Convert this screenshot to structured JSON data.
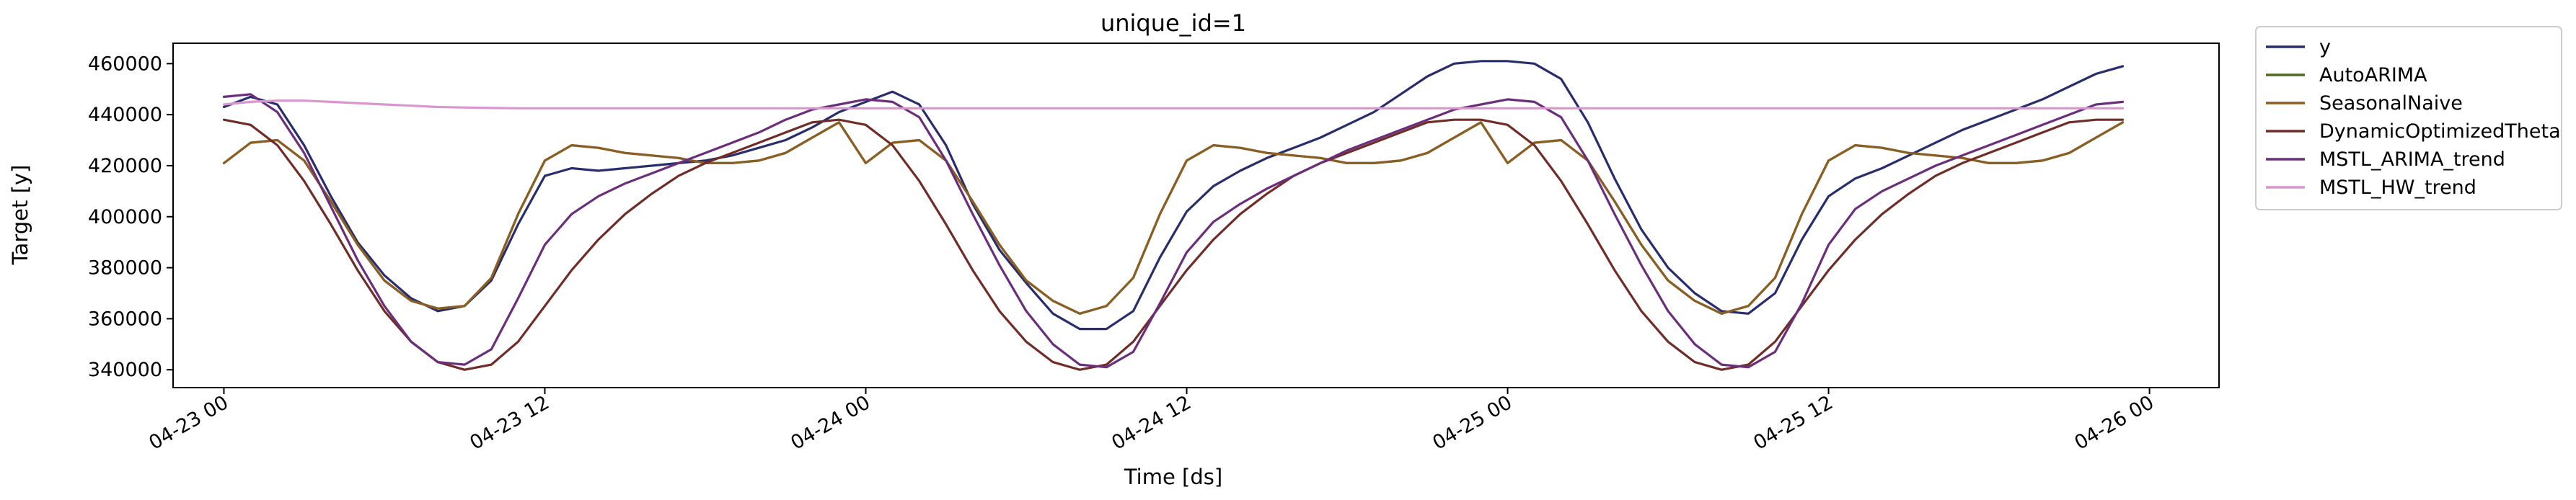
{
  "chart_data": {
    "type": "line",
    "title": "unique_id=1",
    "xlabel": "Time [ds]",
    "ylabel": "Target [y]",
    "x_hours": [
      0,
      1,
      2,
      3,
      4,
      5,
      6,
      7,
      8,
      9,
      10,
      11,
      12,
      13,
      14,
      15,
      16,
      17,
      18,
      19,
      20,
      21,
      22,
      23,
      24,
      25,
      26,
      27,
      28,
      29,
      30,
      31,
      32,
      33,
      34,
      35,
      36,
      37,
      38,
      39,
      40,
      41,
      42,
      43,
      44,
      45,
      46,
      47,
      48,
      49,
      50,
      51,
      52,
      53,
      54,
      55,
      56,
      57,
      58,
      59,
      60,
      61,
      62,
      63,
      64,
      65,
      66,
      67,
      68,
      69,
      70,
      71
    ],
    "x_start": "04-23 00",
    "xlim_hours": [
      -1.9,
      74.6
    ],
    "x_ticks": [
      {
        "hour": 0,
        "label": "04-23 00"
      },
      {
        "hour": 12,
        "label": "04-23 12"
      },
      {
        "hour": 24,
        "label": "04-24 00"
      },
      {
        "hour": 36,
        "label": "04-24 12"
      },
      {
        "hour": 48,
        "label": "04-25 00"
      },
      {
        "hour": 60,
        "label": "04-25 12"
      },
      {
        "hour": 72,
        "label": "04-26 00"
      }
    ],
    "ylim": [
      333000,
      468000
    ],
    "y_ticks": [
      340000,
      360000,
      380000,
      400000,
      420000,
      440000,
      460000
    ],
    "y_tick_labels": [
      "340000",
      "360000",
      "380000",
      "400000",
      "420000",
      "440000",
      "460000"
    ],
    "legend_position": "outside-right",
    "series": [
      {
        "name": "y",
        "color": "#2a2d6b",
        "values": [
          443000,
          447000,
          444000,
          428000,
          408000,
          390000,
          377000,
          368000,
          363000,
          365000,
          375000,
          397000,
          416000,
          419000,
          418000,
          419000,
          420000,
          421000,
          422000,
          424000,
          427000,
          430000,
          435000,
          441000,
          445000,
          449000,
          444000,
          428000,
          405000,
          387000,
          374000,
          362000,
          356000,
          356000,
          363000,
          384000,
          402000,
          412000,
          418000,
          423000,
          427000,
          431000,
          436000,
          441000,
          448000,
          455000,
          460000,
          461000,
          461000,
          460000,
          454000,
          437000,
          415000,
          395000,
          380000,
          370000,
          363000,
          362000,
          370000,
          391000,
          408000,
          415000,
          419000,
          424000,
          429000,
          434000,
          438000,
          442000,
          446000,
          451000,
          456000,
          459000
        ]
      },
      {
        "name": "AutoARIMA",
        "color": "#4f6a21",
        "values": [
          421000,
          429000,
          430000,
          422000,
          406000,
          389000,
          375000,
          367000,
          364000,
          365000,
          376000,
          401000,
          422000,
          428000,
          427000,
          425000,
          424000,
          423000,
          421000,
          421000,
          422000,
          425000,
          431000,
          437000,
          421000,
          429000,
          430000,
          422000,
          406000,
          389000,
          375000,
          367000,
          362000,
          365000,
          376000,
          401000,
          422000,
          428000,
          427000,
          425000,
          424000,
          423000,
          421000,
          421000,
          422000,
          425000,
          431000,
          437000,
          421000,
          429000,
          430000,
          422000,
          406000,
          389000,
          375000,
          367000,
          362000,
          365000,
          376000,
          401000,
          422000,
          428000,
          427000,
          425000,
          424000,
          423000,
          421000,
          421000,
          422000,
          425000,
          431000,
          437000
        ]
      },
      {
        "name": "SeasonalNaive",
        "color": "#8b5e24",
        "values": [
          421000,
          429000,
          430000,
          422000,
          406000,
          389000,
          375000,
          367000,
          364000,
          365000,
          376000,
          401000,
          422000,
          428000,
          427000,
          425000,
          424000,
          423000,
          421000,
          421000,
          422000,
          425000,
          431000,
          437000,
          421000,
          429000,
          430000,
          422000,
          406000,
          389000,
          375000,
          367000,
          362000,
          365000,
          376000,
          401000,
          422000,
          428000,
          427000,
          425000,
          424000,
          423000,
          421000,
          421000,
          422000,
          425000,
          431000,
          437000,
          421000,
          429000,
          430000,
          422000,
          406000,
          389000,
          375000,
          367000,
          362000,
          365000,
          376000,
          401000,
          422000,
          428000,
          427000,
          425000,
          424000,
          423000,
          421000,
          421000,
          422000,
          425000,
          431000,
          437000
        ]
      },
      {
        "name": "DynamicOptimizedTheta",
        "color": "#702d28",
        "values": [
          438000,
          436000,
          428000,
          414000,
          397000,
          379000,
          363000,
          351000,
          343000,
          340000,
          342000,
          351000,
          365000,
          379000,
          391000,
          401000,
          409000,
          416000,
          421000,
          425000,
          429000,
          433000,
          437000,
          438000,
          436000,
          428000,
          414000,
          397000,
          379000,
          363000,
          351000,
          343000,
          340000,
          342000,
          351000,
          365000,
          379000,
          391000,
          401000,
          409000,
          416000,
          421000,
          425000,
          429000,
          433000,
          437000,
          438000,
          438000,
          436000,
          428000,
          414000,
          397000,
          379000,
          363000,
          351000,
          343000,
          340000,
          342000,
          351000,
          365000,
          379000,
          391000,
          401000,
          409000,
          416000,
          421000,
          425000,
          429000,
          433000,
          437000,
          438000,
          438000
        ]
      },
      {
        "name": "MSTL_ARIMA_trend",
        "color": "#6a2e7a",
        "values": [
          447000,
          448000,
          441000,
          425000,
          404000,
          383000,
          365000,
          351000,
          343000,
          342000,
          348000,
          368000,
          389000,
          401000,
          408000,
          413000,
          417000,
          421000,
          425000,
          429000,
          433000,
          438000,
          442000,
          444000,
          446000,
          445000,
          439000,
          422000,
          401000,
          381000,
          363000,
          350000,
          342000,
          341000,
          347000,
          366000,
          386000,
          398000,
          405000,
          411000,
          416000,
          421000,
          426000,
          430000,
          434000,
          438000,
          442000,
          444000,
          446000,
          445000,
          439000,
          422000,
          401000,
          381000,
          363000,
          350000,
          342000,
          341000,
          347000,
          366000,
          389000,
          403000,
          410000,
          415000,
          420000,
          424000,
          428000,
          432000,
          436000,
          440000,
          444000,
          445000
        ]
      },
      {
        "name": "MSTL_HW_trend",
        "color": "#d996cf",
        "values": [
          444000,
          445000,
          445500,
          445500,
          445000,
          444500,
          444000,
          443500,
          443000,
          442800,
          442600,
          442500,
          442500,
          442500,
          442500,
          442500,
          442500,
          442500,
          442500,
          442500,
          442500,
          442500,
          442500,
          442500,
          442500,
          442500,
          442500,
          442500,
          442500,
          442500,
          442500,
          442500,
          442500,
          442500,
          442500,
          442500,
          442500,
          442500,
          442500,
          442500,
          442500,
          442500,
          442500,
          442500,
          442500,
          442500,
          442500,
          442500,
          442500,
          442500,
          442500,
          442500,
          442500,
          442500,
          442500,
          442500,
          442500,
          442500,
          442500,
          442500,
          442500,
          442500,
          442500,
          442500,
          442500,
          442500,
          442500,
          442500,
          442500,
          442500,
          442500,
          442500
        ]
      }
    ]
  }
}
